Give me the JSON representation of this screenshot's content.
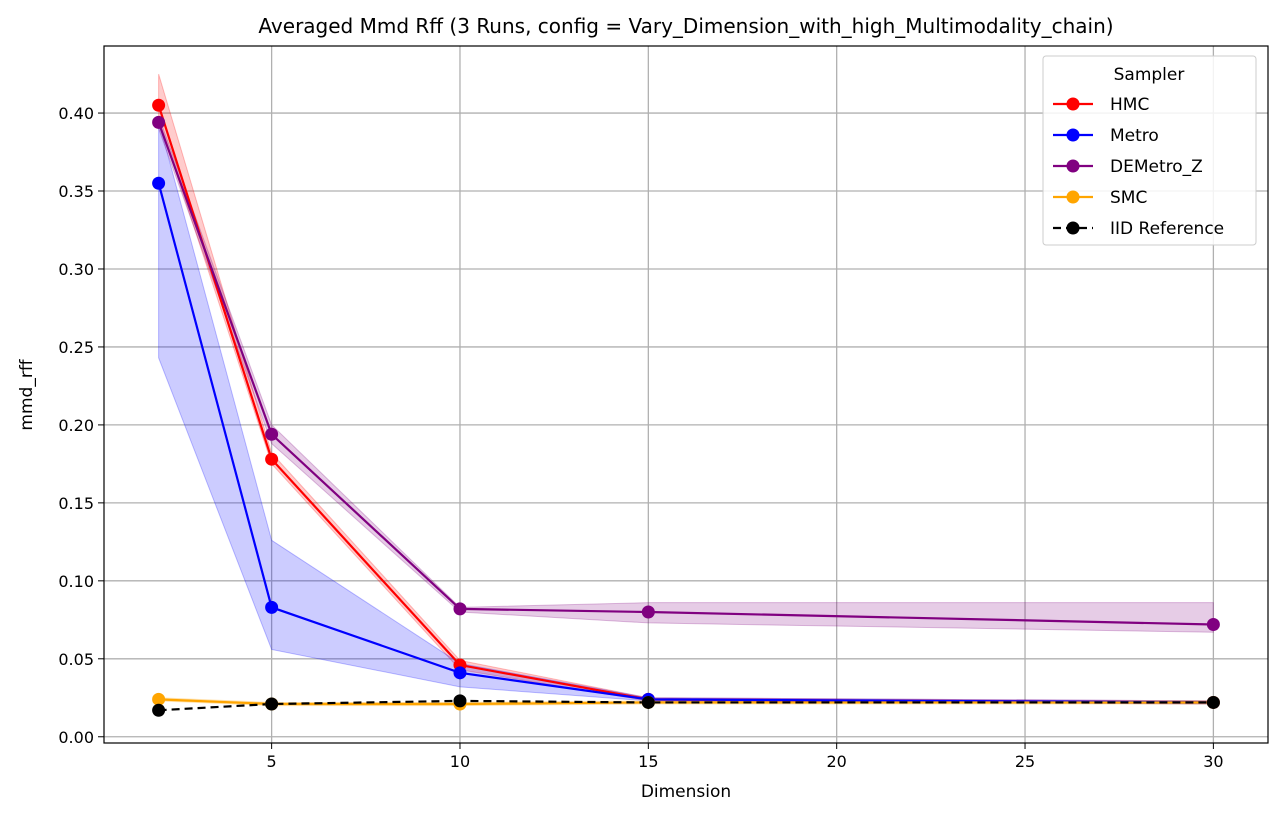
{
  "chart_data": {
    "type": "line",
    "title": "Averaged Mmd Rff (3 Runs, config = Vary_Dimension_with_high_Multimodality_chain)",
    "xlabel": "Dimension",
    "ylabel": "mmd_rff",
    "xlim": [
      0.55,
      31.45
    ],
    "ylim": [
      -0.004,
      0.443
    ],
    "xticks": [
      5,
      10,
      15,
      20,
      25,
      30
    ],
    "yticks": [
      0.0,
      0.05,
      0.1,
      0.15,
      0.2,
      0.25,
      0.3,
      0.35,
      0.4
    ],
    "ytick_labels": [
      "0.00",
      "0.05",
      "0.10",
      "0.15",
      "0.20",
      "0.25",
      "0.30",
      "0.35",
      "0.40"
    ],
    "grid": true,
    "legend": {
      "title": "Sampler",
      "position": "top-right"
    },
    "x": [
      2,
      5,
      10,
      15,
      30
    ],
    "series": [
      {
        "name": "HMC",
        "color": "#ff0000",
        "dashed": false,
        "values": [
          0.405,
          0.178,
          0.046,
          0.024,
          0.022
        ],
        "lower": [
          0.396,
          0.175,
          0.043,
          0.023,
          0.021
        ],
        "upper": [
          0.425,
          0.182,
          0.049,
          0.025,
          0.023
        ]
      },
      {
        "name": "Metro",
        "color": "#0000ff",
        "dashed": false,
        "values": [
          0.355,
          0.083,
          0.041,
          0.024,
          0.022
        ],
        "lower": [
          0.243,
          0.056,
          0.032,
          0.023,
          0.021
        ],
        "upper": [
          0.395,
          0.126,
          0.047,
          0.025,
          0.023
        ]
      },
      {
        "name": "DEMetro_Z",
        "color": "#800080",
        "dashed": false,
        "values": [
          0.394,
          0.194,
          0.082,
          0.08,
          0.072
        ],
        "lower": [
          0.39,
          0.188,
          0.08,
          0.073,
          0.067
        ],
        "upper": [
          0.398,
          0.2,
          0.083,
          0.086,
          0.086
        ]
      },
      {
        "name": "SMC",
        "color": "#ffa500",
        "dashed": false,
        "values": [
          0.024,
          0.021,
          0.021,
          0.022,
          0.022
        ],
        "lower": [
          0.023,
          0.02,
          0.02,
          0.021,
          0.021
        ],
        "upper": [
          0.025,
          0.022,
          0.022,
          0.023,
          0.023
        ]
      },
      {
        "name": "IID Reference",
        "color": "#000000",
        "dashed": true,
        "values": [
          0.017,
          0.021,
          0.023,
          0.022,
          0.022
        ]
      }
    ]
  }
}
